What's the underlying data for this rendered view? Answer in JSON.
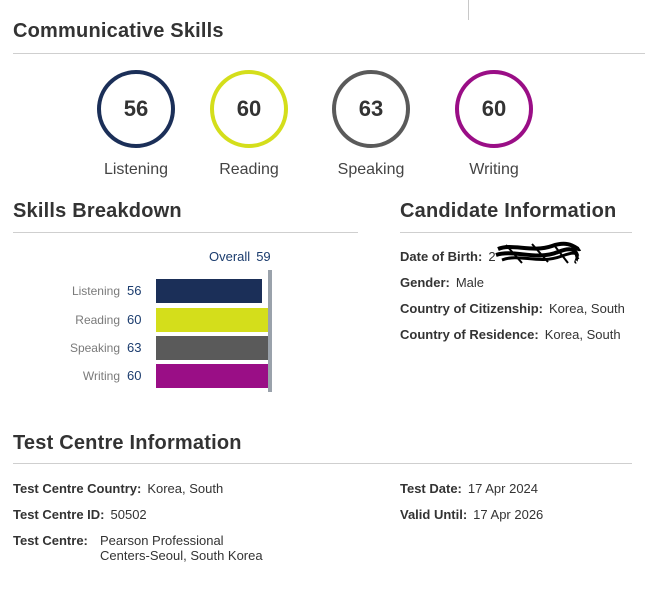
{
  "communicative": {
    "title": "Communicative Skills",
    "scores": [
      {
        "label": "Listening",
        "value": "56",
        "color": "#1b2f58"
      },
      {
        "label": "Reading",
        "value": "60",
        "color": "#d4de1b"
      },
      {
        "label": "Speaking",
        "value": "63",
        "color": "#5a5a5a"
      },
      {
        "label": "Writing",
        "value": "60",
        "color": "#9a0e86"
      }
    ]
  },
  "breakdown": {
    "title": "Skills Breakdown",
    "overall_label": "Overall",
    "overall_value": "59",
    "rows": [
      {
        "label": "Listening",
        "value": "56"
      },
      {
        "label": "Reading",
        "value": "60"
      },
      {
        "label": "Speaking",
        "value": "63"
      },
      {
        "label": "Writing",
        "value": "60"
      }
    ]
  },
  "candidate": {
    "title": "Candidate Information",
    "dob_label": "Date of Birth:",
    "dob_value": "2",
    "gender_label": "Gender:",
    "gender_value": "Male",
    "citizenship_label": "Country of Citizenship:",
    "citizenship_value": "Korea, South",
    "residence_label": "Country of Residence:",
    "residence_value": "Korea, South"
  },
  "test_centre": {
    "title": "Test Centre Information",
    "country_label": "Test Centre Country:",
    "country_value": "Korea, South",
    "id_label": "Test Centre ID:",
    "id_value": "50502",
    "centre_label": "Test Centre:",
    "centre_value_line1": "Pearson Professional",
    "centre_value_line2": "Centers-Seoul, South Korea",
    "date_label": "Test Date:",
    "date_value": "17 Apr 2024",
    "valid_label": "Valid Until:",
    "valid_value": "17 Apr 2026"
  }
}
